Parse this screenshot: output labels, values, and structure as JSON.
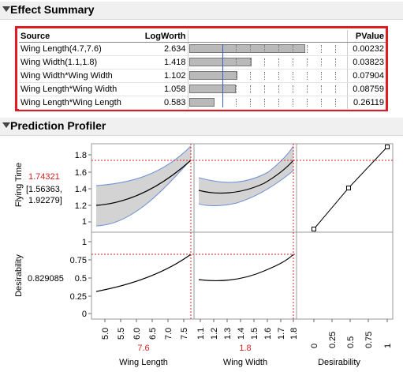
{
  "effect_summary": {
    "title": "Effect Summary",
    "columns": [
      "Source",
      "LogWorth",
      "PValue"
    ],
    "rows": [
      {
        "source": "Wing Length(4.7,7.6)",
        "logworth": "2.634",
        "pvalue": "0.00232",
        "logworth_value": 2.634
      },
      {
        "source": "Wing Width(1.1,1.8)",
        "logworth": "1.418",
        "pvalue": "0.03823",
        "logworth_value": 1.418
      },
      {
        "source": "Wing Width*Wing Width",
        "logworth": "1.102",
        "pvalue": "0.07904",
        "logworth_value": 1.102
      },
      {
        "source": "Wing Length*Wing Width",
        "logworth": "1.058",
        "pvalue": "0.08759",
        "logworth_value": 1.058
      },
      {
        "source": "Wing Length*Wing Length",
        "logworth": "0.583",
        "pvalue": "0.26119",
        "logworth_value": 0.583
      }
    ]
  },
  "profiler": {
    "title": "Prediction Profiler",
    "response": {
      "label": "Flying Time",
      "current_value": "1.74321",
      "ci_low": "[1.56363,",
      "ci_high": "1.92279]",
      "yticks": [
        "1.8",
        "1.6",
        "1.4",
        "1.2",
        "1"
      ]
    },
    "desirability": {
      "label": "Desirability",
      "current_value": "0.829085",
      "yticks": [
        "1",
        "0.75",
        "0.5",
        "0.25",
        "0"
      ]
    },
    "factors": [
      {
        "label": "Wing Length",
        "current": "7.6",
        "ticks": [
          "5.0",
          "5.5",
          "6.0",
          "6.5",
          "7.0",
          "7.5"
        ]
      },
      {
        "label": "Wing Width",
        "current": "1.8",
        "ticks": [
          "1.1",
          "1.2",
          "1.3",
          "1.4",
          "1.5",
          "1.6",
          "1.7",
          "1.8"
        ]
      }
    ],
    "desirability_axis": {
      "label": "Desirability",
      "ticks": [
        "0",
        "0.25",
        "0.5",
        "0.75",
        "1"
      ]
    }
  },
  "colors": {
    "highlight_border": "#e01b22",
    "current_value": "#d42020",
    "ci_band": "#d3d3d3",
    "ci_edge": "#6b8fd6"
  }
}
